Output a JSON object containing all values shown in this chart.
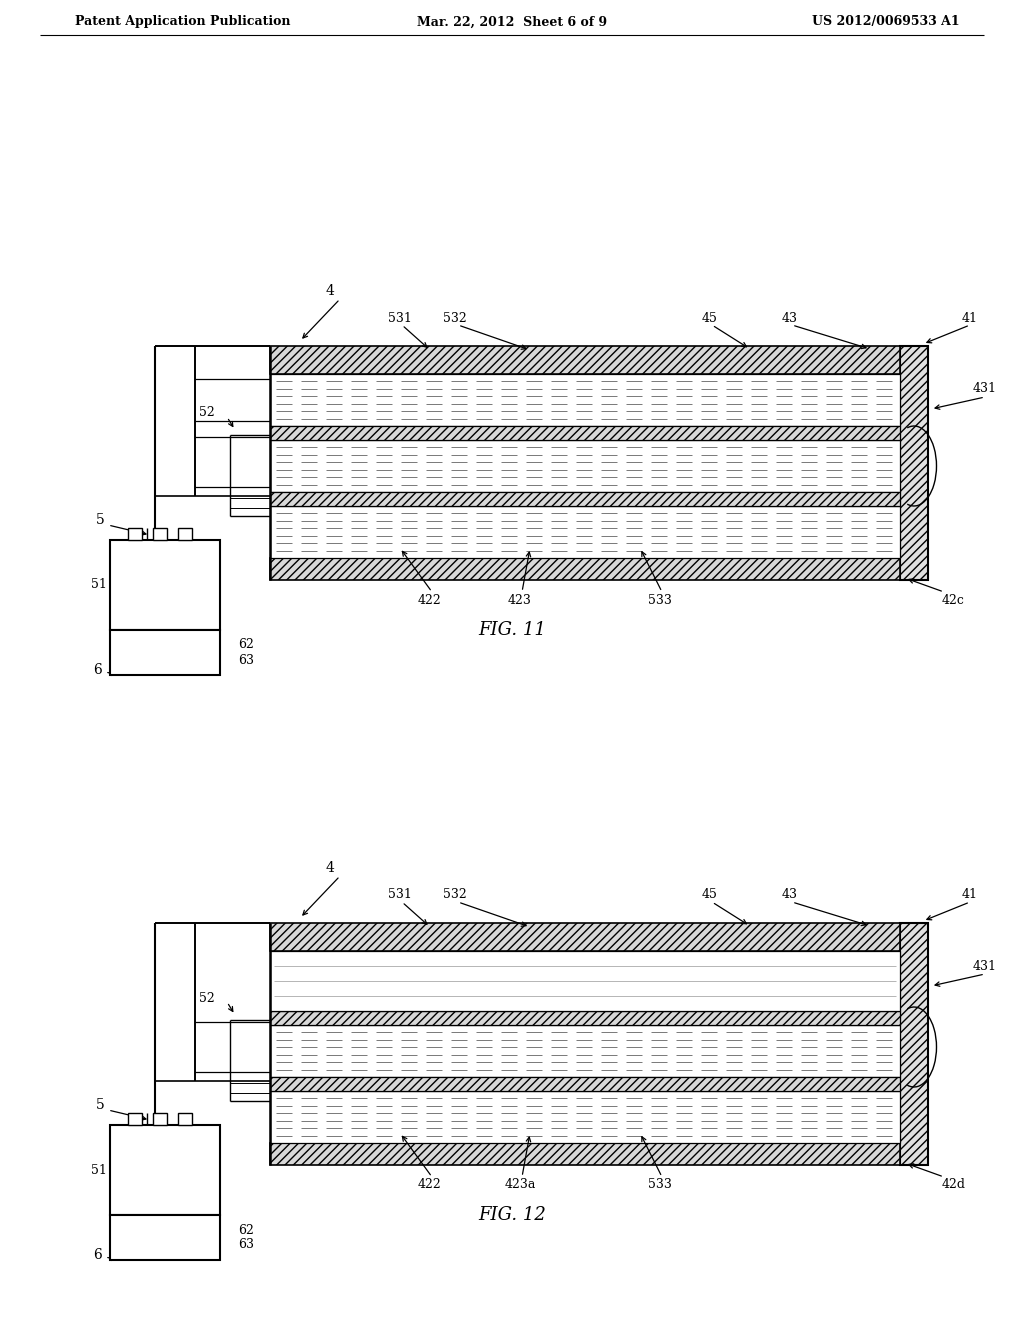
{
  "bg_color": "#ffffff",
  "header_left": "Patent Application Publication",
  "header_center": "Mar. 22, 2012  Sheet 6 of 9",
  "header_right": "US 2012/0069533 A1",
  "fig11_title": "FIG. 11",
  "fig12_title": "FIG. 12"
}
